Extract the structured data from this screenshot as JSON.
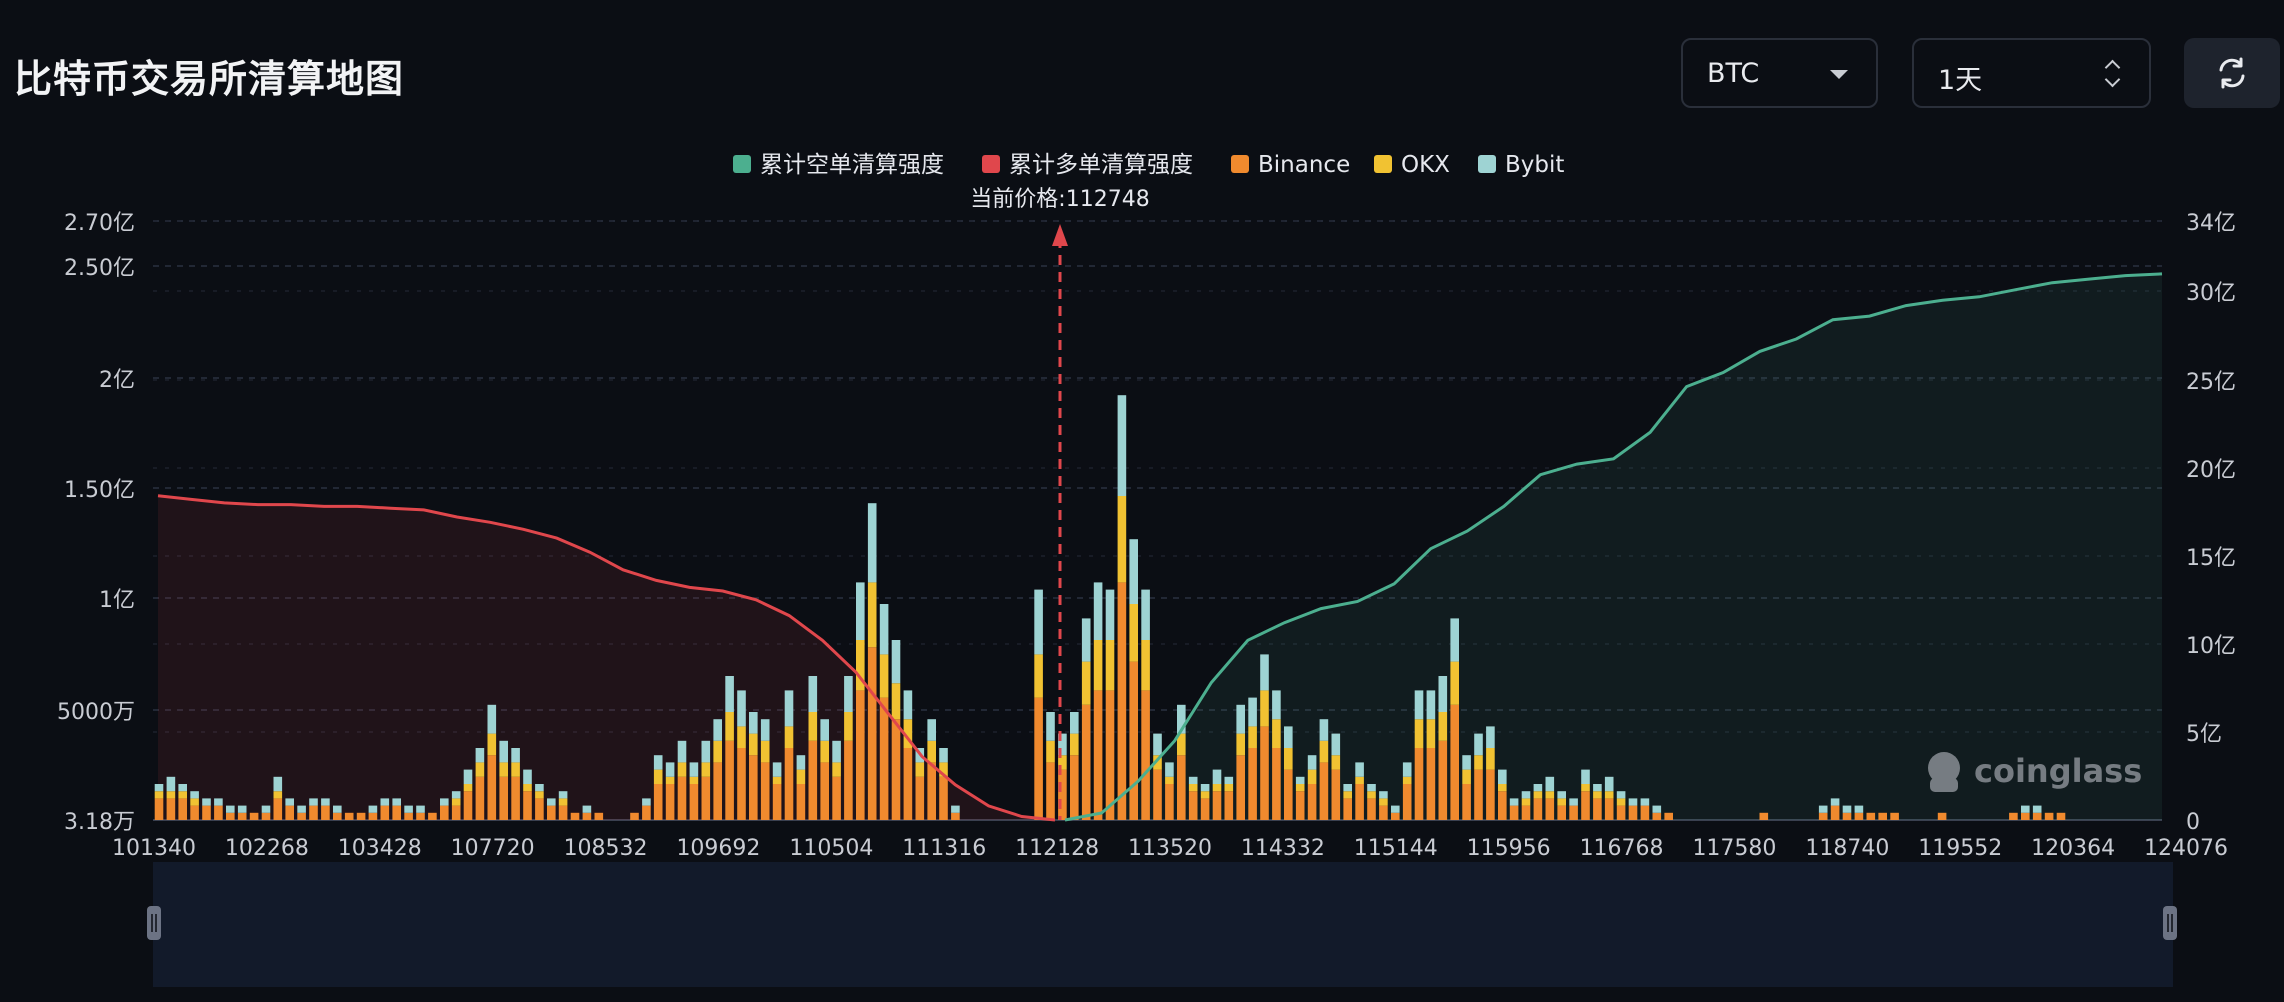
{
  "page": {
    "title": "比特币交易所清算地图"
  },
  "controls": {
    "symbol": "BTC",
    "interval": "1天",
    "icons": {
      "symbol_caret": "chevron-down-icon",
      "interval_stepper": "up-down-icon",
      "refresh": "refresh-icon"
    }
  },
  "watermark": "coinglass",
  "chart_data": {
    "type": "bar",
    "current_price_label": "当前价格:112748",
    "current_price": 112748,
    "legend": [
      {
        "name": "累计空单清算强度",
        "color": "#4caf8f"
      },
      {
        "name": "累计多单清算强度",
        "color": "#e0474c"
      },
      {
        "name": "Binance",
        "color": "#f08a2e"
      },
      {
        "name": "OKX",
        "color": "#f1c232"
      },
      {
        "name": "Bybit",
        "color": "#9ed3d3"
      }
    ],
    "legend_position": "top-center",
    "x_tick_labels": [
      "101340",
      "102268",
      "103428",
      "107720",
      "108532",
      "109692",
      "110504",
      "111316",
      "112128",
      "113520",
      "114332",
      "115144",
      "115956",
      "116768",
      "117580",
      "118740",
      "119552",
      "120364",
      "124076"
    ],
    "y_left_ticks": [
      "3.18万",
      "5000万",
      "1亿",
      "1.50亿",
      "2亿",
      "2.50亿",
      "2.70亿"
    ],
    "y_left_tick_values": [
      31800000,
      50000000,
      100000000,
      150000000,
      200000000,
      250000000,
      270000000
    ],
    "y_right_ticks": [
      "0",
      "5亿",
      "10亿",
      "15亿",
      "20亿",
      "25亿",
      "30亿",
      "34亿"
    ],
    "y_right_tick_values": [
      0,
      500000000,
      1000000000,
      1500000000,
      2000000000,
      2500000000,
      3000000000,
      3400000000
    ],
    "grid": true,
    "bars_total": [
      5,
      6,
      5,
      4,
      3,
      3,
      2,
      2,
      1,
      2,
      6,
      3,
      2,
      3,
      3,
      2,
      1,
      1,
      2,
      3,
      3,
      2,
      2,
      1,
      3,
      4,
      7,
      10,
      16,
      11,
      10,
      7,
      5,
      3,
      4,
      1,
      2,
      1,
      0,
      0,
      1,
      3,
      9,
      8,
      11,
      8,
      11,
      14,
      20,
      18,
      15,
      14,
      8,
      18,
      9,
      20,
      14,
      11,
      20,
      33,
      44,
      30,
      25,
      18,
      10,
      14,
      10,
      2,
      0,
      0,
      0,
      0,
      0,
      0,
      32,
      15,
      12,
      15,
      28,
      33,
      32,
      59,
      39,
      32,
      12,
      8,
      16,
      6,
      5,
      7,
      6,
      16,
      17,
      23,
      18,
      13,
      6,
      9,
      14,
      12,
      5,
      8,
      5,
      4,
      2,
      8,
      18,
      18,
      20,
      28,
      9,
      12,
      13,
      7,
      3,
      4,
      5,
      6,
      4,
      3,
      7,
      5,
      6,
      4,
      3,
      3,
      2,
      1,
      0,
      0,
      0,
      0,
      0,
      0,
      0,
      1,
      0,
      0,
      0,
      0,
      2,
      3,
      2,
      2,
      1,
      1,
      1,
      0,
      0,
      0,
      1,
      0,
      0,
      0,
      0,
      0,
      1,
      2,
      2,
      1,
      1,
      0,
      0,
      0,
      0,
      0,
      0,
      0,
      0
    ],
    "bars_binance": [
      3,
      3,
      3,
      2,
      2,
      2,
      1,
      1,
      1,
      1,
      3,
      2,
      1,
      2,
      2,
      1,
      1,
      1,
      1,
      2,
      2,
      1,
      1,
      1,
      2,
      2,
      4,
      6,
      9,
      6,
      6,
      4,
      3,
      2,
      2,
      1,
      1,
      1,
      0,
      0,
      1,
      2,
      5,
      5,
      6,
      5,
      6,
      8,
      11,
      10,
      9,
      8,
      5,
      10,
      5,
      11,
      8,
      6,
      11,
      18,
      24,
      17,
      14,
      10,
      6,
      8,
      6,
      1,
      0,
      0,
      0,
      0,
      0,
      0,
      17,
      8,
      7,
      9,
      16,
      18,
      18,
      33,
      22,
      18,
      7,
      5,
      9,
      4,
      3,
      4,
      4,
      9,
      10,
      13,
      10,
      7,
      4,
      5,
      8,
      7,
      3,
      5,
      3,
      2,
      1,
      5,
      10,
      10,
      11,
      16,
      5,
      7,
      7,
      4,
      2,
      2,
      3,
      3,
      2,
      2,
      4,
      3,
      3,
      2,
      2,
      2,
      1,
      1,
      0,
      0,
      0,
      0,
      0,
      0,
      0,
      1,
      0,
      0,
      0,
      0,
      1,
      2,
      1,
      1,
      1,
      1,
      1,
      0,
      0,
      0,
      1,
      0,
      0,
      0,
      0,
      0,
      1,
      1,
      1,
      1,
      1,
      0,
      0,
      0,
      0,
      0,
      0,
      0,
      0
    ],
    "bars_okx": [
      1,
      1,
      1,
      1,
      0,
      0,
      0,
      0,
      0,
      0,
      1,
      0,
      0,
      0,
      0,
      0,
      0,
      0,
      0,
      0,
      0,
      0,
      0,
      0,
      0,
      1,
      1,
      2,
      3,
      2,
      2,
      1,
      1,
      0,
      1,
      0,
      0,
      0,
      0,
      0,
      0,
      0,
      2,
      1,
      2,
      1,
      2,
      3,
      4,
      3,
      3,
      3,
      1,
      3,
      2,
      4,
      3,
      2,
      4,
      7,
      9,
      6,
      5,
      4,
      2,
      3,
      2,
      0,
      0,
      0,
      0,
      0,
      0,
      0,
      6,
      3,
      2,
      3,
      6,
      7,
      7,
      12,
      8,
      7,
      2,
      1,
      3,
      1,
      1,
      1,
      1,
      3,
      3,
      5,
      4,
      3,
      1,
      2,
      3,
      2,
      1,
      1,
      1,
      1,
      0,
      1,
      4,
      4,
      4,
      6,
      2,
      2,
      3,
      1,
      0,
      1,
      1,
      1,
      1,
      0,
      1,
      1,
      1,
      1,
      0,
      0,
      0,
      0,
      0,
      0,
      0,
      0,
      0,
      0,
      0,
      0,
      0,
      0,
      0,
      0,
      0,
      0,
      0,
      0,
      0,
      0,
      0,
      0,
      0,
      0,
      0,
      0,
      0,
      0,
      0,
      0,
      0,
      0,
      0,
      0,
      0,
      0,
      0,
      0,
      0,
      0,
      0,
      0,
      0
    ],
    "cumulative_long_levels": [
      18.4,
      18.2,
      18.0,
      17.9,
      17.9,
      17.8,
      17.8,
      17.7,
      17.6,
      17.2,
      16.9,
      16.5,
      16.0,
      15.2,
      14.2,
      13.6,
      13.2,
      13.0,
      12.5,
      11.6,
      10.2,
      8.4,
      6.0,
      3.6,
      2.0,
      0.8,
      0.2,
      0.0
    ],
    "cumulative_short_levels": [
      0.0,
      0.4,
      2.2,
      4.5,
      7.8,
      10.2,
      11.2,
      12.0,
      12.4,
      13.4,
      15.4,
      16.4,
      17.8,
      19.6,
      20.2,
      20.5,
      22.0,
      24.6,
      25.4,
      26.6,
      27.3,
      28.4,
      28.6,
      29.2,
      29.5,
      29.7,
      30.1,
      30.5,
      30.7,
      30.9,
      31.0
    ],
    "long_curve_ylim_units": "亿",
    "short_curve_ylim_units": "亿"
  }
}
